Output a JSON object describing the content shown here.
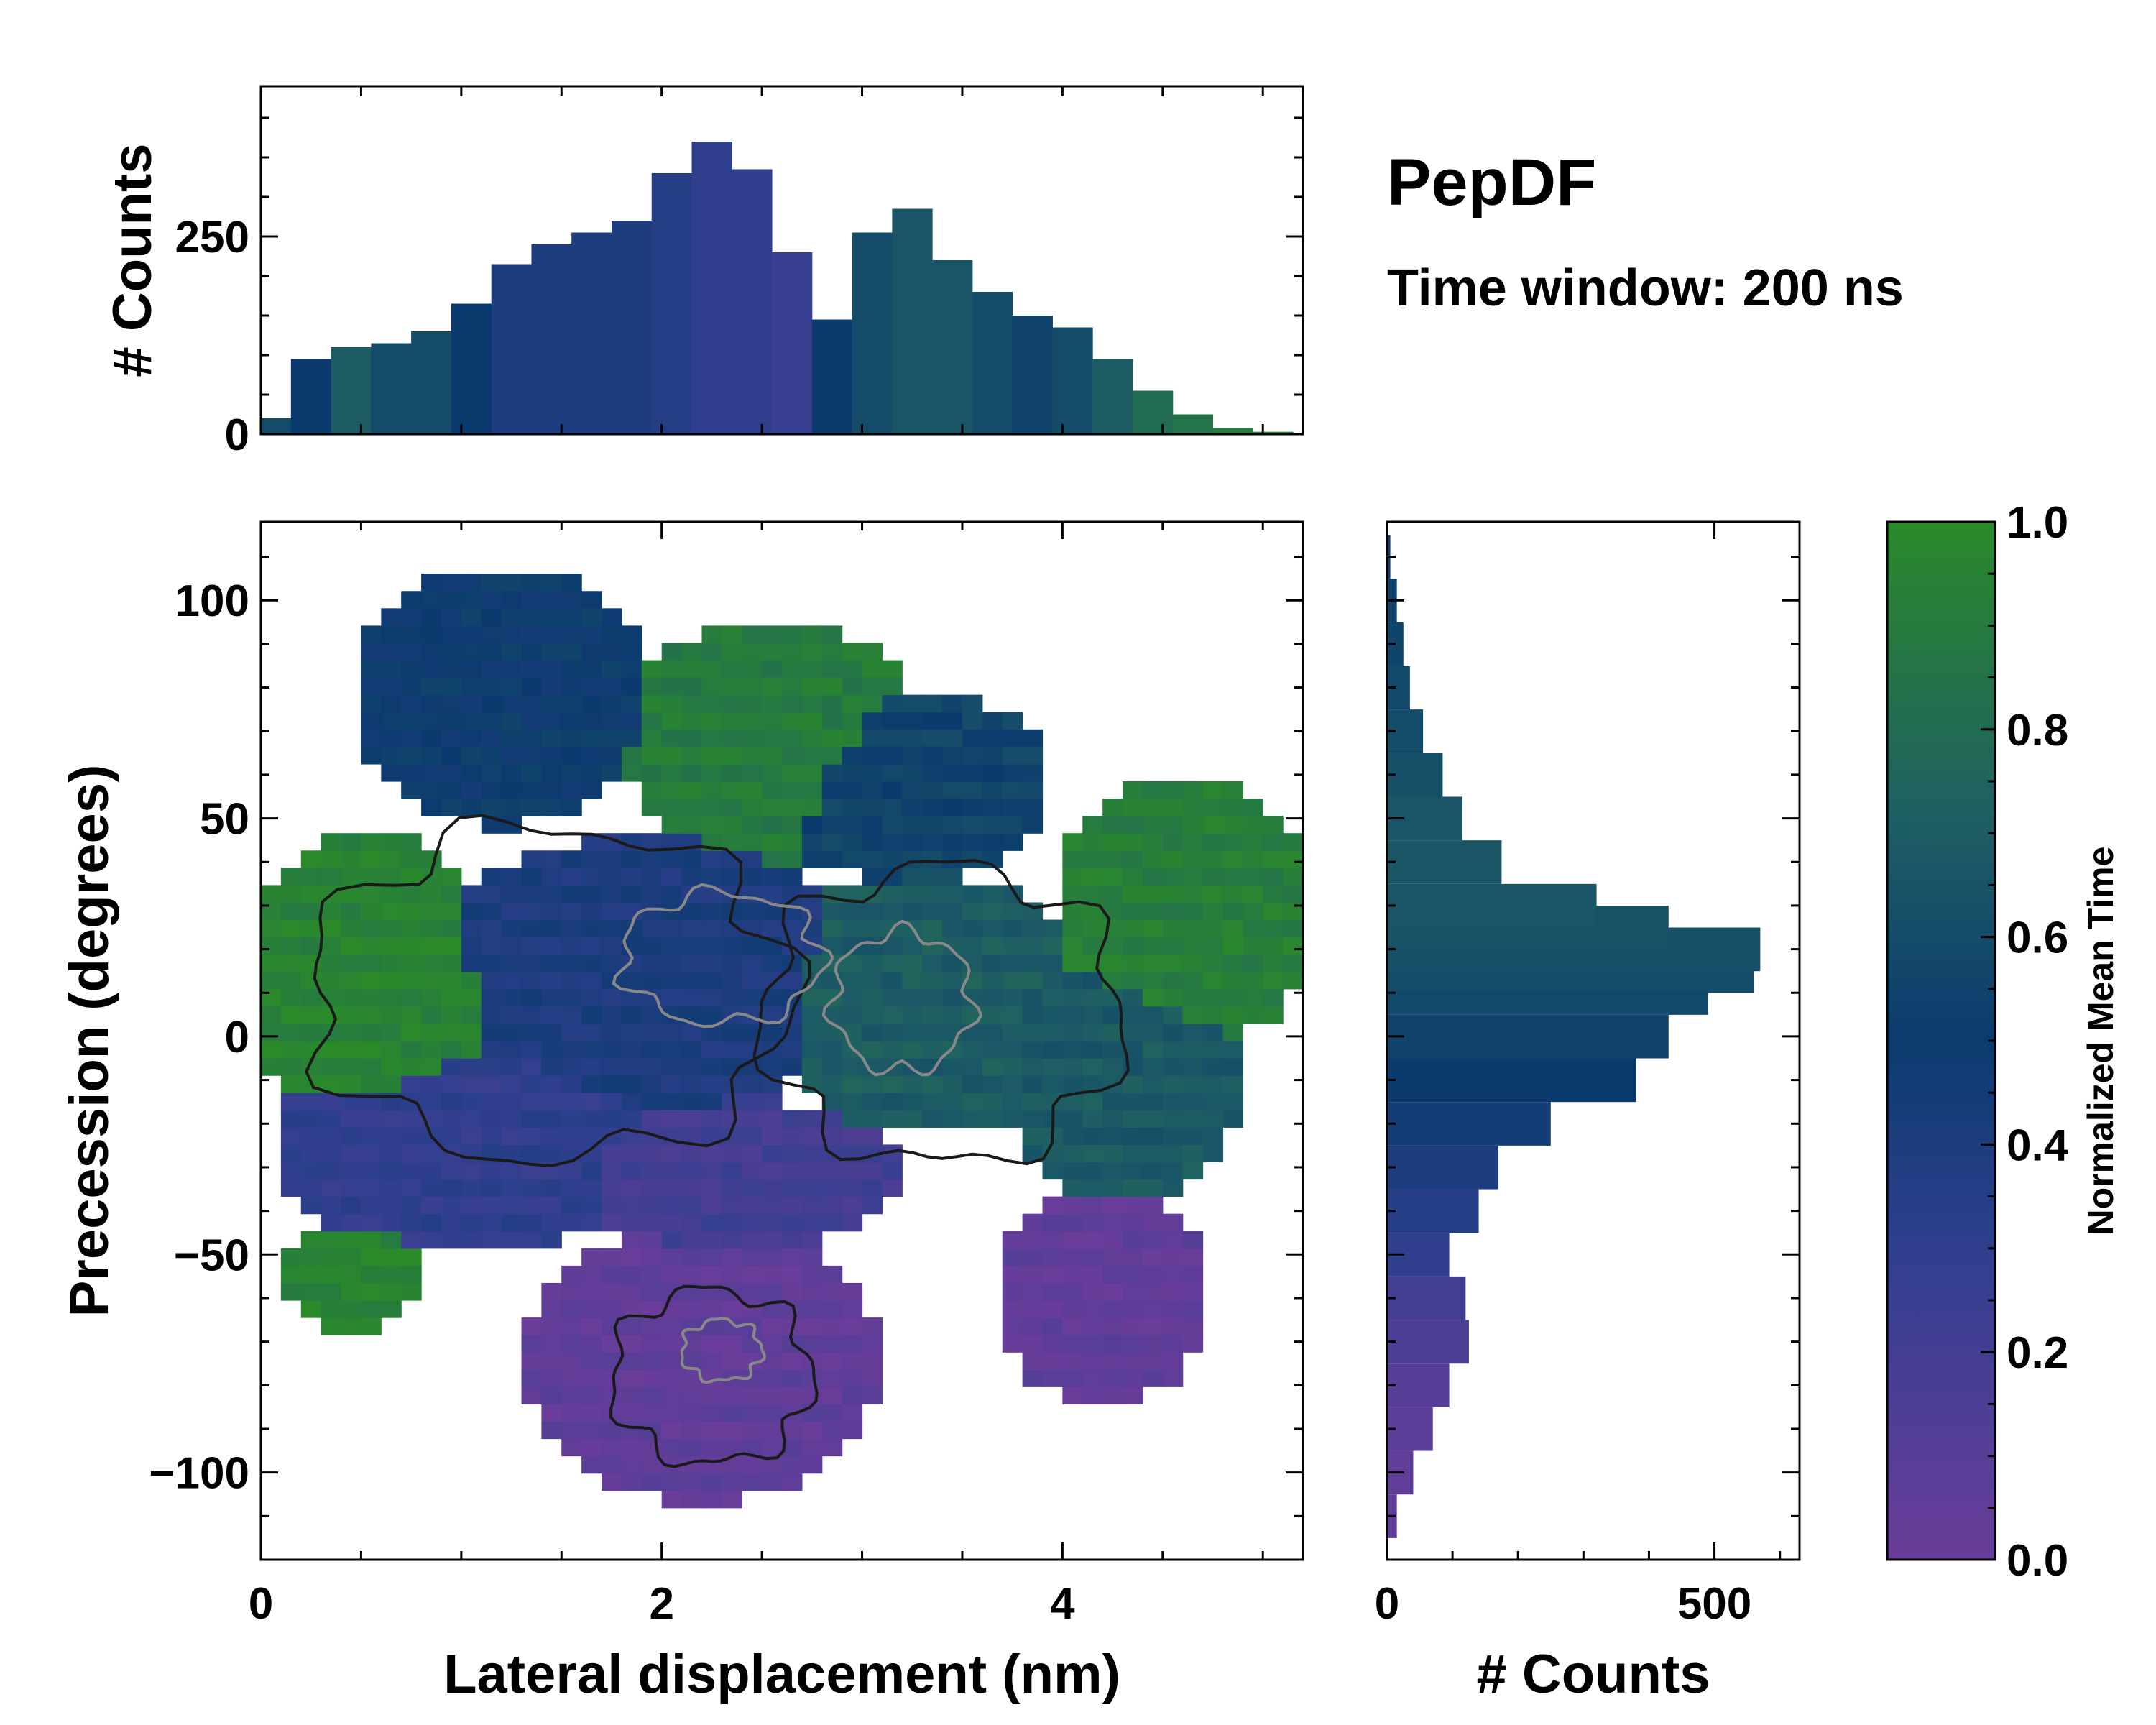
{
  "title": "PepDF",
  "subtitle": "Time window: 200 ns",
  "colors": {
    "low": "#6a3d9a",
    "mid_low": "#2f3f8e",
    "mid": "#0b3b6e",
    "mid_high": "#1f5f63",
    "high": "#2a8a2a",
    "contour_dark": "#1a1a1a",
    "contour_grey": "#888888",
    "outline": "#000000"
  },
  "chart_data": [
    {
      "id": "top-histogram",
      "type": "bar",
      "title": "",
      "xlabel": "",
      "ylabel": "# Counts",
      "xlim": [
        0,
        5.2
      ],
      "ylim": [
        0,
        440
      ],
      "yticks": [
        0,
        250
      ],
      "ytick_labels": [
        "0",
        "250"
      ],
      "x": [
        0.05,
        0.25,
        0.45,
        0.65,
        0.85,
        1.05,
        1.25,
        1.45,
        1.65,
        1.85,
        2.05,
        2.25,
        2.45,
        2.65,
        2.85,
        3.05,
        3.25,
        3.45,
        3.65,
        3.85,
        4.05,
        4.25,
        4.45,
        4.65,
        4.85,
        5.05
      ],
      "values": [
        20,
        95,
        110,
        115,
        130,
        165,
        215,
        240,
        255,
        270,
        330,
        370,
        335,
        230,
        145,
        255,
        285,
        220,
        180,
        150,
        135,
        95,
        55,
        25,
        8,
        3
      ],
      "color_values": [
        0.6,
        0.5,
        0.7,
        0.6,
        0.6,
        0.5,
        0.4,
        0.4,
        0.4,
        0.4,
        0.35,
        0.3,
        0.3,
        0.25,
        0.5,
        0.6,
        0.65,
        0.65,
        0.6,
        0.55,
        0.6,
        0.7,
        0.8,
        0.85,
        0.9,
        0.9
      ]
    },
    {
      "id": "main-heatmap",
      "type": "heatmap",
      "title": "",
      "xlabel": "Lateral displacement (nm)",
      "ylabel": "Precession (degrees)",
      "xlim": [
        0,
        5.2
      ],
      "ylim": [
        -120,
        118
      ],
      "xticks": [
        0,
        2,
        4
      ],
      "xtick_labels": [
        "0",
        "2",
        "4"
      ],
      "yticks": [
        -100,
        -50,
        0,
        50,
        100
      ],
      "ytick_labels": [
        "−100",
        "−50",
        "0",
        "50",
        "100"
      ],
      "colorbar_label": "Normalized Mean Time",
      "regions": [
        {
          "name": "upper-left-cluster",
          "cx": 1.2,
          "cy": 78,
          "rx": 0.75,
          "ry": 30,
          "value": 0.5
        },
        {
          "name": "upper-middle-cluster",
          "cx": 2.55,
          "cy": 68,
          "rx": 0.75,
          "ry": 28,
          "value": 0.9
        },
        {
          "name": "upper-right-cluster",
          "cx": 3.2,
          "cy": 58,
          "rx": 0.75,
          "ry": 22,
          "value": 0.55
        },
        {
          "name": "far-right-cluster",
          "cx": 4.6,
          "cy": 28,
          "rx": 0.65,
          "ry": 32,
          "value": 0.92
        },
        {
          "name": "left-cluster",
          "cx": 0.55,
          "cy": 12,
          "rx": 0.65,
          "ry": 35,
          "value": 0.95
        },
        {
          "name": "center-cluster",
          "cx": 1.9,
          "cy": 14,
          "rx": 1.1,
          "ry": 32,
          "value": 0.4
        },
        {
          "name": "center-right-cluster",
          "cx": 3.3,
          "cy": 8,
          "rx": 0.8,
          "ry": 30,
          "value": 0.7
        },
        {
          "name": "right-cluster",
          "cx": 4.3,
          "cy": -10,
          "rx": 0.6,
          "ry": 30,
          "value": 0.68
        },
        {
          "name": "lower-left-cluster",
          "cx": 1.0,
          "cy": -25,
          "rx": 0.95,
          "ry": 25,
          "value": 0.3
        },
        {
          "name": "lower-center-cluster",
          "cx": 2.35,
          "cy": -32,
          "rx": 0.85,
          "ry": 18,
          "value": 0.2
        },
        {
          "name": "bottom-left-cluster",
          "cx": 0.45,
          "cy": -55,
          "rx": 0.35,
          "ry": 13,
          "value": 0.95
        },
        {
          "name": "bottom-center-cluster",
          "cx": 2.2,
          "cy": -75,
          "rx": 0.9,
          "ry": 32,
          "value": 0.05
        },
        {
          "name": "bottom-right-cluster",
          "cx": 4.2,
          "cy": -60,
          "rx": 0.55,
          "ry": 25,
          "value": 0.05
        }
      ],
      "contours": [
        {
          "name": "outer-contour",
          "color": "dark",
          "cx": 1.45,
          "cy": 10,
          "rx": 1.2,
          "ry": 38
        },
        {
          "name": "right-contour",
          "color": "dark",
          "cx": 3.4,
          "cy": 5,
          "rx": 0.9,
          "ry": 34
        },
        {
          "name": "center-contour",
          "color": "grey",
          "cx": 2.3,
          "cy": 18,
          "rx": 0.5,
          "ry": 15
        },
        {
          "name": "right-inner-contour",
          "color": "grey",
          "cx": 3.2,
          "cy": 8,
          "rx": 0.35,
          "ry": 16
        },
        {
          "name": "bottom-contour",
          "color": "dark",
          "cx": 2.25,
          "cy": -78,
          "rx": 0.5,
          "ry": 20
        },
        {
          "name": "bottom-inner-contour",
          "color": "grey",
          "cx": 2.3,
          "cy": -72,
          "rx": 0.2,
          "ry": 7
        }
      ]
    },
    {
      "id": "right-histogram",
      "type": "bar",
      "orientation": "horizontal",
      "title": "",
      "xlabel": "# Counts",
      "ylabel": "",
      "xlim": [
        0,
        630
      ],
      "ylim": [
        -120,
        118
      ],
      "xticks": [
        0,
        500
      ],
      "xtick_labels": [
        "0",
        "500"
      ],
      "y": [
        -110,
        -100,
        -90,
        -80,
        -70,
        -60,
        -50,
        -40,
        -30,
        -20,
        -10,
        0,
        10,
        15,
        20,
        25,
        30,
        40,
        50,
        60,
        70,
        80,
        90,
        100,
        110
      ],
      "values": [
        15,
        40,
        70,
        95,
        125,
        120,
        95,
        140,
        170,
        250,
        380,
        430,
        490,
        560,
        570,
        430,
        320,
        175,
        115,
        85,
        55,
        35,
        25,
        15,
        5
      ],
      "color_values": [
        0.05,
        0.05,
        0.08,
        0.1,
        0.15,
        0.2,
        0.3,
        0.35,
        0.4,
        0.45,
        0.5,
        0.55,
        0.58,
        0.6,
        0.62,
        0.64,
        0.65,
        0.66,
        0.65,
        0.62,
        0.6,
        0.58,
        0.56,
        0.55,
        0.5
      ]
    }
  ],
  "colorbar": {
    "label": "Normalized Mean Time",
    "ticks": [
      0.0,
      0.2,
      0.4,
      0.6,
      0.8,
      1.0
    ],
    "tick_labels": [
      "0.0",
      "0.2",
      "0.4",
      "0.6",
      "0.8",
      "1.0"
    ]
  }
}
